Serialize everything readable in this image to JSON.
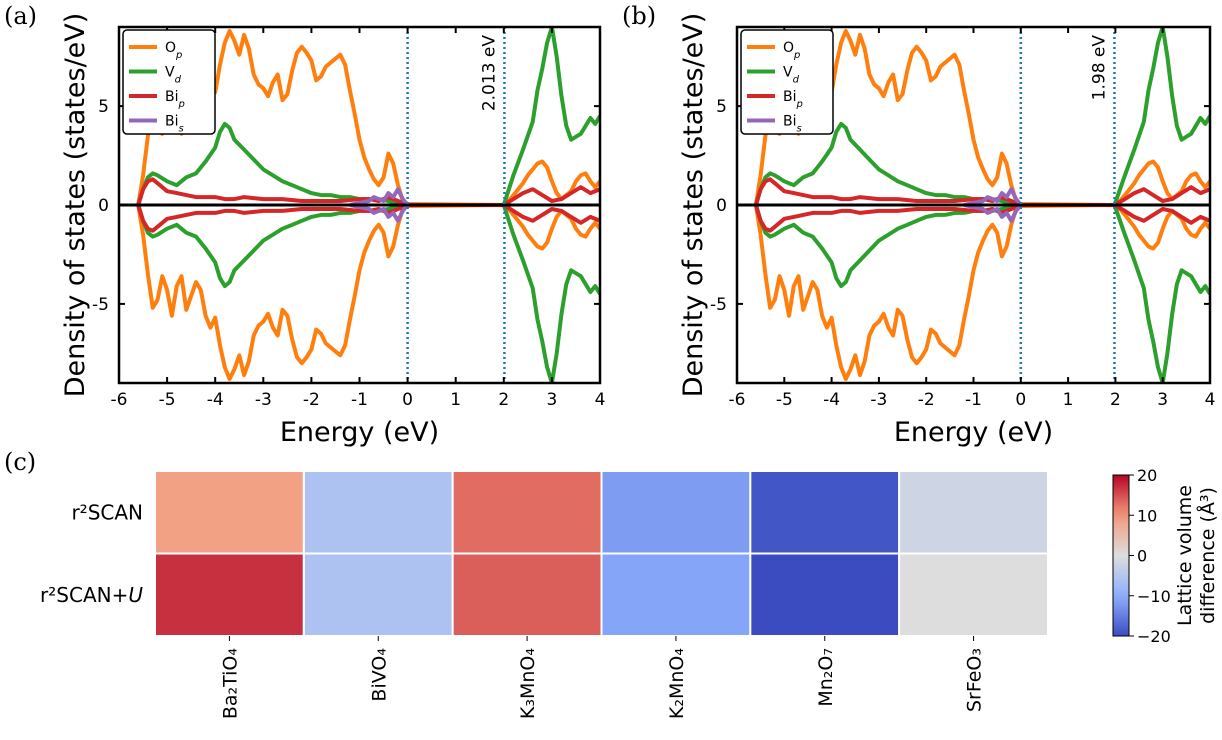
{
  "panels": [
    {
      "label": "(a)",
      "ylabel": "Density of states (states/eV)",
      "xlabel": "Energy (eV)",
      "xlim": [
        -6,
        4
      ],
      "ylim": [
        -9,
        9
      ],
      "xticks": [
        "-6",
        "-5",
        "-4",
        "-3",
        "-2",
        "-1",
        "0",
        "1",
        "2",
        "3",
        "4"
      ],
      "yticks": [
        "-5",
        "0",
        "5"
      ],
      "gap_label": "2.013 eV",
      "gap_lines": [
        0,
        2.013
      ],
      "legend": [
        "O",
        "V",
        "Bi",
        "Bi"
      ]
    },
    {
      "label": "(b)",
      "ylabel": "Density of states (states/eV)",
      "xlabel": "Energy (eV)",
      "xlim": [
        -6,
        4
      ],
      "ylim": [
        -9,
        9
      ],
      "xticks": [
        "-6",
        "-5",
        "-4",
        "-3",
        "-2",
        "-1",
        "0",
        "1",
        "2",
        "3",
        "4"
      ],
      "yticks": [
        "-5",
        "0",
        "5"
      ],
      "gap_label": "1.98 eV",
      "gap_lines": [
        0,
        1.98
      ],
      "legend": [
        "O",
        "V",
        "Bi",
        "Bi"
      ]
    }
  ],
  "legend_subscripts": [
    "p",
    "d",
    "p",
    "s"
  ],
  "series_colors": {
    "O_p": "#ff7f0e",
    "V_d": "#2ca02c",
    "Bi_p": "#d62728",
    "Bi_s": "#9467bd",
    "total": "#000000",
    "gap_line": "#1f77b4"
  },
  "heatmap": {
    "label": "(c)",
    "rows": [
      "r²SCAN",
      "r²SCAN+U"
    ],
    "columns": [
      "Ba₂TiO₄",
      "BiVO₄",
      "K₃MnO₄",
      "K₂MnO₄",
      "Mn₂O₇",
      "SrFeO₃"
    ],
    "colorbar_label": "Lattice volume difference (Å³)",
    "colorbar_ticks": [
      "−20",
      "−10",
      "0",
      "10",
      "20"
    ],
    "cmap": "coolwarm",
    "vmin": -20,
    "vmax": 20
  },
  "chart_data": [
    {
      "type": "line",
      "panel": "a",
      "xlabel": "Energy (eV)",
      "ylabel": "Density of states (states/eV)",
      "xlim": [
        -6,
        4
      ],
      "ylim": [
        -9,
        9
      ],
      "annotation": "2.013 eV",
      "series": [
        {
          "name": "O_p",
          "x": [
            -5.6,
            -5.5,
            -5.4,
            -5.3,
            -5.2,
            -5.1,
            -5.0,
            -4.9,
            -4.8,
            -4.7,
            -4.6,
            -4.5,
            -4.4,
            -4.3,
            -4.2,
            -4.1,
            -4.0,
            -3.9,
            -3.8,
            -3.7,
            -3.6,
            -3.5,
            -3.4,
            -3.3,
            -3.2,
            -3.1,
            -3.0,
            -2.9,
            -2.8,
            -2.7,
            -2.6,
            -2.5,
            -2.4,
            -2.3,
            -2.2,
            -2.1,
            -2.0,
            -1.9,
            -1.8,
            -1.7,
            -1.6,
            -1.5,
            -1.4,
            -1.3,
            -1.2,
            -1.1,
            -1.0,
            -0.9,
            -0.8,
            -0.7,
            -0.6,
            -0.5,
            -0.4,
            -0.3,
            -0.2,
            -0.1,
            0.0,
            2.0,
            2.1,
            2.2,
            2.3,
            2.4,
            2.5,
            2.6,
            2.7,
            2.8,
            2.9,
            3.0,
            3.1,
            3.2,
            3.3,
            3.4,
            3.5,
            3.6,
            3.7,
            3.8,
            3.9,
            4.0
          ],
          "y": [
            0,
            1.5,
            3.5,
            5.2,
            4.8,
            3.6,
            4.3,
            5.6,
            4.1,
            3.6,
            5.3,
            4.6,
            3.9,
            4.3,
            5.6,
            6.2,
            5.7,
            7.1,
            8.2,
            8.8,
            8.3,
            7.6,
            8.6,
            7.9,
            6.6,
            6.1,
            5.9,
            5.5,
            6.2,
            6.6,
            5.3,
            5.6,
            6.8,
            7.7,
            8.0,
            7.7,
            7.3,
            6.3,
            6.5,
            7.0,
            7.2,
            7.4,
            7.6,
            7.1,
            5.8,
            4.6,
            3.3,
            2.4,
            1.8,
            1.3,
            1.0,
            1.4,
            2.6,
            2.1,
            1.0,
            0.2,
            0.05,
            0,
            0.2,
            0.5,
            0.8,
            1.1,
            1.5,
            1.8,
            2.1,
            2.2,
            1.9,
            1.2,
            0.6,
            0.3,
            0.5,
            0.7,
            1.2,
            1.5,
            1.6,
            1.2,
            0.9,
            1.2
          ]
        },
        {
          "name": "V_d",
          "x": [
            -5.6,
            -5.5,
            -5.4,
            -5.3,
            -5.2,
            -5.0,
            -4.8,
            -4.6,
            -4.4,
            -4.2,
            -4.0,
            -3.9,
            -3.8,
            -3.7,
            -3.6,
            -3.4,
            -3.2,
            -3.0,
            -2.8,
            -2.6,
            -2.4,
            -2.2,
            -2.0,
            -1.8,
            -1.6,
            -1.4,
            -1.2,
            -1.0,
            -0.8,
            -0.6,
            -0.4,
            -0.2,
            0.0,
            2.0,
            2.2,
            2.4,
            2.6,
            2.7,
            2.8,
            2.9,
            3.0,
            3.1,
            3.2,
            3.3,
            3.4,
            3.6,
            3.8,
            3.9,
            4.0
          ],
          "y": [
            0,
            0.8,
            1.4,
            1.6,
            1.5,
            1.2,
            1.0,
            1.4,
            1.6,
            2.2,
            2.9,
            3.7,
            4.1,
            3.9,
            3.3,
            2.8,
            2.3,
            1.8,
            1.5,
            1.2,
            1.0,
            0.8,
            0.6,
            0.5,
            0.5,
            0.4,
            0.4,
            0.3,
            0.3,
            0.3,
            0.2,
            0.1,
            0.0,
            0,
            1.5,
            2.8,
            4.2,
            5.8,
            6.9,
            8.2,
            9.0,
            7.5,
            5.5,
            4.0,
            3.3,
            3.6,
            4.4,
            4.1,
            4.5
          ]
        },
        {
          "name": "Bi_p",
          "x": [
            -5.6,
            -5.5,
            -5.4,
            -5.3,
            -5.2,
            -5.0,
            -4.8,
            -4.6,
            -4.4,
            -4.2,
            -4.0,
            -3.8,
            -3.6,
            -3.4,
            -3.0,
            -2.6,
            -2.2,
            -1.8,
            -1.4,
            -1.0,
            -0.8,
            -0.6,
            -0.4,
            -0.2,
            0.0,
            2.0,
            2.2,
            2.4,
            2.6,
            2.8,
            3.0,
            3.2,
            3.4,
            3.6,
            3.8,
            4.0
          ],
          "y": [
            0,
            0.8,
            1.2,
            1.3,
            1.1,
            0.7,
            0.6,
            0.5,
            0.4,
            0.4,
            0.4,
            0.3,
            0.3,
            0.4,
            0.3,
            0.3,
            0.2,
            0.2,
            0.2,
            0.3,
            0.3,
            0.2,
            0.4,
            0.2,
            0.0,
            0,
            0.3,
            0.6,
            0.8,
            0.5,
            0.2,
            0.3,
            0.6,
            0.9,
            0.6,
            0.8
          ]
        },
        {
          "name": "Bi_s",
          "x": [
            -1.2,
            -1.0,
            -0.8,
            -0.7,
            -0.6,
            -0.5,
            -0.4,
            -0.3,
            -0.2,
            -0.1,
            0.0
          ],
          "y": [
            0,
            0.1,
            0.2,
            0.4,
            0.3,
            0.2,
            0.6,
            0.4,
            0.8,
            0.3,
            0.0
          ]
        }
      ],
      "spin_down": "mirror of spin-up (negative values)"
    },
    {
      "type": "line",
      "panel": "b",
      "xlabel": "Energy (eV)",
      "ylabel": "Density of states (states/eV)",
      "xlim": [
        -6,
        4
      ],
      "ylim": [
        -9,
        9
      ],
      "annotation": "1.98 eV",
      "series": [
        {
          "name": "O_p",
          "x": [
            -5.6,
            -5.5,
            -5.4,
            -5.3,
            -5.2,
            -5.1,
            -5.0,
            -4.9,
            -4.8,
            -4.7,
            -4.6,
            -4.5,
            -4.4,
            -4.3,
            -4.2,
            -4.1,
            -4.0,
            -3.9,
            -3.8,
            -3.7,
            -3.6,
            -3.5,
            -3.4,
            -3.3,
            -3.2,
            -3.1,
            -3.0,
            -2.9,
            -2.8,
            -2.7,
            -2.6,
            -2.5,
            -2.4,
            -2.3,
            -2.2,
            -2.1,
            -2.0,
            -1.9,
            -1.8,
            -1.7,
            -1.6,
            -1.5,
            -1.4,
            -1.3,
            -1.2,
            -1.1,
            -1.0,
            -0.9,
            -0.8,
            -0.7,
            -0.6,
            -0.5,
            -0.4,
            -0.3,
            -0.2,
            -0.1,
            0.0,
            1.98,
            2.1,
            2.2,
            2.3,
            2.4,
            2.5,
            2.6,
            2.7,
            2.8,
            2.9,
            3.0,
            3.1,
            3.2,
            3.3,
            3.4,
            3.5,
            3.6,
            3.7,
            3.8,
            3.9,
            4.0
          ],
          "y": [
            0,
            1.5,
            3.5,
            5.2,
            4.8,
            3.6,
            4.3,
            5.6,
            4.1,
            3.6,
            5.3,
            4.6,
            3.9,
            4.3,
            5.6,
            6.2,
            5.7,
            7.1,
            8.2,
            8.8,
            8.3,
            7.6,
            8.6,
            7.9,
            6.6,
            6.1,
            5.9,
            5.5,
            6.2,
            6.6,
            5.3,
            5.6,
            6.8,
            7.7,
            8.0,
            7.7,
            7.3,
            6.3,
            6.5,
            7.0,
            7.2,
            7.4,
            7.6,
            7.1,
            5.8,
            4.6,
            3.3,
            2.4,
            1.8,
            1.3,
            1.0,
            1.4,
            2.6,
            2.1,
            1.0,
            0.2,
            0.05,
            0,
            0.2,
            0.5,
            0.8,
            1.1,
            1.5,
            1.8,
            2.1,
            2.2,
            1.9,
            1.2,
            0.6,
            0.3,
            0.5,
            0.7,
            1.2,
            1.5,
            1.6,
            1.2,
            0.9,
            1.2
          ]
        },
        {
          "name": "V_d",
          "x": [
            -5.6,
            -5.5,
            -5.4,
            -5.3,
            -5.2,
            -5.0,
            -4.8,
            -4.6,
            -4.4,
            -4.2,
            -4.0,
            -3.9,
            -3.8,
            -3.7,
            -3.6,
            -3.4,
            -3.2,
            -3.0,
            -2.8,
            -2.6,
            -2.4,
            -2.2,
            -2.0,
            -1.8,
            -1.6,
            -1.4,
            -1.2,
            -1.0,
            -0.8,
            -0.6,
            -0.4,
            -0.2,
            0.0,
            1.98,
            2.2,
            2.4,
            2.6,
            2.7,
            2.8,
            2.9,
            3.0,
            3.1,
            3.2,
            3.3,
            3.4,
            3.6,
            3.8,
            3.9,
            4.0
          ],
          "y": [
            0,
            0.8,
            1.4,
            1.6,
            1.5,
            1.2,
            1.0,
            1.4,
            1.6,
            2.2,
            2.9,
            3.7,
            4.1,
            3.9,
            3.3,
            2.8,
            2.3,
            1.8,
            1.5,
            1.2,
            1.0,
            0.8,
            0.6,
            0.5,
            0.5,
            0.4,
            0.4,
            0.3,
            0.3,
            0.3,
            0.2,
            0.1,
            0.0,
            0,
            1.5,
            2.8,
            4.2,
            5.8,
            6.9,
            8.2,
            9.0,
            7.5,
            5.5,
            4.0,
            3.3,
            3.6,
            4.4,
            4.1,
            4.5
          ]
        },
        {
          "name": "Bi_p",
          "x": [
            -5.6,
            -5.5,
            -5.4,
            -5.3,
            -5.2,
            -5.0,
            -4.8,
            -4.6,
            -4.4,
            -4.2,
            -4.0,
            -3.8,
            -3.6,
            -3.4,
            -3.0,
            -2.6,
            -2.2,
            -1.8,
            -1.4,
            -1.0,
            -0.8,
            -0.6,
            -0.4,
            -0.2,
            0.0,
            1.98,
            2.2,
            2.4,
            2.6,
            2.8,
            3.0,
            3.2,
            3.4,
            3.6,
            3.8,
            4.0
          ],
          "y": [
            0,
            0.8,
            1.2,
            1.3,
            1.1,
            0.7,
            0.6,
            0.5,
            0.4,
            0.4,
            0.4,
            0.3,
            0.3,
            0.4,
            0.3,
            0.3,
            0.2,
            0.2,
            0.2,
            0.3,
            0.3,
            0.2,
            0.4,
            0.2,
            0.0,
            0,
            0.3,
            0.6,
            0.8,
            0.5,
            0.2,
            0.3,
            0.6,
            0.9,
            0.6,
            0.8
          ]
        },
        {
          "name": "Bi_s",
          "x": [
            -1.2,
            -1.0,
            -0.8,
            -0.7,
            -0.6,
            -0.5,
            -0.4,
            -0.3,
            -0.2,
            -0.1,
            0.0
          ],
          "y": [
            0,
            0.1,
            0.2,
            0.4,
            0.3,
            0.2,
            0.6,
            0.4,
            0.8,
            0.3,
            0.0
          ]
        }
      ],
      "spin_down": "mirror of spin-up (negative values)"
    },
    {
      "type": "heatmap",
      "panel": "c",
      "rows": [
        "r²SCAN",
        "r²SCAN+U"
      ],
      "columns": [
        "Ba₂TiO₄",
        "BiVO₄",
        "K₃MnO₄",
        "K₂MnO₄",
        "Mn₂O₇",
        "SrFeO₃"
      ],
      "values": [
        [
          9,
          -6,
          13,
          -12,
          -19,
          -2
        ],
        [
          17,
          -6,
          14,
          -11,
          -20,
          0
        ]
      ],
      "colorbar_label": "Lattice volume difference (Å³)",
      "vmin": -20,
      "vmax": 20
    }
  ]
}
